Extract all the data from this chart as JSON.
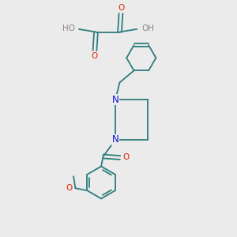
{
  "bg": "#ebebeb",
  "bond_color": "#2d7d7d",
  "bond_lw": 1.3,
  "o_color": "#dd2200",
  "n_color": "#1111dd",
  "h_color": "#888888",
  "text_size": 7.5,
  "figsize": [
    3.0,
    3.0
  ],
  "dpi": 100,
  "xlim": [
    0,
    10
  ],
  "ylim": [
    0,
    10
  ]
}
